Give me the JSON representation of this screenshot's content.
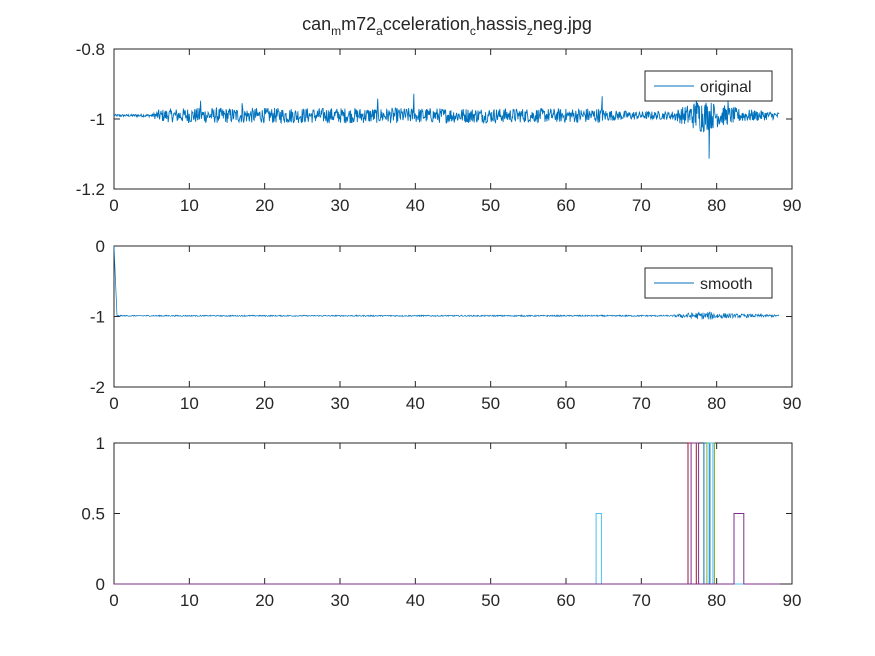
{
  "figure": {
    "title_parts": [
      {
        "text": "can",
        "sub": false
      },
      {
        "text": "m",
        "sub": true
      },
      {
        "text": "m72",
        "sub": false
      },
      {
        "text": "a",
        "sub": true
      },
      {
        "text": "cceleration",
        "sub": false
      },
      {
        "text": "c",
        "sub": true
      },
      {
        "text": "hassis",
        "sub": false
      },
      {
        "text": "z",
        "sub": true
      },
      {
        "text": "neg.jpg",
        "sub": false
      }
    ],
    "background": "#ffffff",
    "axes_color": "#262626"
  },
  "chart_data": [
    {
      "type": "line",
      "title": "can_m_m72_a_cceleration_c_hassis_z_neg.jpg",
      "xlim": [
        0,
        90
      ],
      "ylim": [
        -1.2,
        -0.8
      ],
      "xticks": [
        0,
        10,
        20,
        30,
        40,
        50,
        60,
        70,
        80,
        90
      ],
      "yticks": [
        -0.8,
        -1,
        -1.2
      ],
      "ytick_labels": [
        "-0.8",
        "-1",
        "-1.2"
      ],
      "xlabel": "",
      "ylabel": "",
      "grid": false,
      "legend": {
        "position": "top-right",
        "entries": [
          "original"
        ]
      },
      "series": [
        {
          "name": "original",
          "color": "#0072BD",
          "x_range": [
            0,
            88.3
          ],
          "baseline": -0.99,
          "noise_envelope": [
            {
              "x": 0,
              "amp": 0.003
            },
            {
              "x": 5,
              "amp": 0.004
            },
            {
              "x": 6,
              "amp": 0.018
            },
            {
              "x": 10,
              "amp": 0.022
            },
            {
              "x": 20,
              "amp": 0.022
            },
            {
              "x": 40,
              "amp": 0.022
            },
            {
              "x": 60,
              "amp": 0.02
            },
            {
              "x": 64,
              "amp": 0.022
            },
            {
              "x": 66,
              "amp": 0.015
            },
            {
              "x": 70,
              "amp": 0.012
            },
            {
              "x": 74,
              "amp": 0.012
            },
            {
              "x": 76,
              "amp": 0.03
            },
            {
              "x": 78,
              "amp": 0.05
            },
            {
              "x": 80,
              "amp": 0.035
            },
            {
              "x": 83,
              "amp": 0.02
            },
            {
              "x": 88.3,
              "amp": 0.01
            }
          ],
          "peaks": [
            {
              "x": 11.5,
              "y": -0.948
            },
            {
              "x": 17.0,
              "y": -0.955
            },
            {
              "x": 35.0,
              "y": -0.942
            },
            {
              "x": 39.8,
              "y": -0.928
            },
            {
              "x": 64.8,
              "y": -0.935
            },
            {
              "x": 77.3,
              "y": -0.93
            },
            {
              "x": 79.0,
              "y": -1.113
            },
            {
              "x": 81.5,
              "y": -0.947
            }
          ]
        }
      ]
    },
    {
      "type": "line",
      "xlim": [
        0,
        90
      ],
      "ylim": [
        -2,
        0
      ],
      "xticks": [
        0,
        10,
        20,
        30,
        40,
        50,
        60,
        70,
        80,
        90
      ],
      "yticks": [
        0,
        -1,
        -2
      ],
      "ytick_labels": [
        "0",
        "-1",
        "-2"
      ],
      "xlabel": "",
      "ylabel": "",
      "grid": false,
      "legend": {
        "position": "top-right",
        "entries": [
          "smooth"
        ]
      },
      "series": [
        {
          "name": "smooth",
          "color": "#0072BD",
          "start": {
            "x": 0,
            "y": 0
          },
          "settle": {
            "x": 0.4,
            "y": -0.99
          },
          "x_range": [
            0,
            88.3
          ],
          "baseline": -0.99,
          "noise_envelope": [
            {
              "x": 0.5,
              "amp": 0.008
            },
            {
              "x": 74,
              "amp": 0.01
            },
            {
              "x": 76,
              "amp": 0.04
            },
            {
              "x": 79,
              "amp": 0.06
            },
            {
              "x": 82,
              "amp": 0.03
            },
            {
              "x": 88.3,
              "amp": 0.015
            }
          ]
        }
      ]
    },
    {
      "type": "line",
      "xlim": [
        0,
        90
      ],
      "ylim": [
        0,
        1
      ],
      "xticks": [
        0,
        10,
        20,
        30,
        40,
        50,
        60,
        70,
        80,
        90
      ],
      "yticks": [
        1,
        0.5,
        0
      ],
      "ytick_labels": [
        "1",
        "0.5",
        "0"
      ],
      "xlabel": "",
      "ylabel": "",
      "grid": false,
      "legend": null,
      "x_range": [
        0,
        88.3
      ],
      "series": [
        {
          "color": "#4DBEEE",
          "pulses": [
            {
              "x0": 64.0,
              "x1": 64.7,
              "y": 0.5
            }
          ]
        },
        {
          "color": "#A2142F",
          "pulses": [
            {
              "x0": 76.2,
              "x1": 77.3,
              "y": 1
            }
          ]
        },
        {
          "color": "#7E2F8E",
          "pulses": [
            {
              "x0": 76.6,
              "x1": 77.6,
              "y": 1
            }
          ]
        },
        {
          "color": "#0072BD",
          "pulses": [
            {
              "x0": 78.3,
              "x1": 79.1,
              "y": 1
            }
          ]
        },
        {
          "color": "#77AC30",
          "pulses": [
            {
              "x0": 78.7,
              "x1": 79.7,
              "y": 1
            }
          ]
        },
        {
          "color": "#4DBEEE",
          "pulses": [
            {
              "x0": 79.0,
              "x1": 79.5,
              "y": 1
            }
          ]
        },
        {
          "color": "#7E2F8E",
          "pulses": [
            {
              "x0": 82.3,
              "x1": 83.6,
              "y": 0.5
            }
          ]
        }
      ]
    }
  ]
}
